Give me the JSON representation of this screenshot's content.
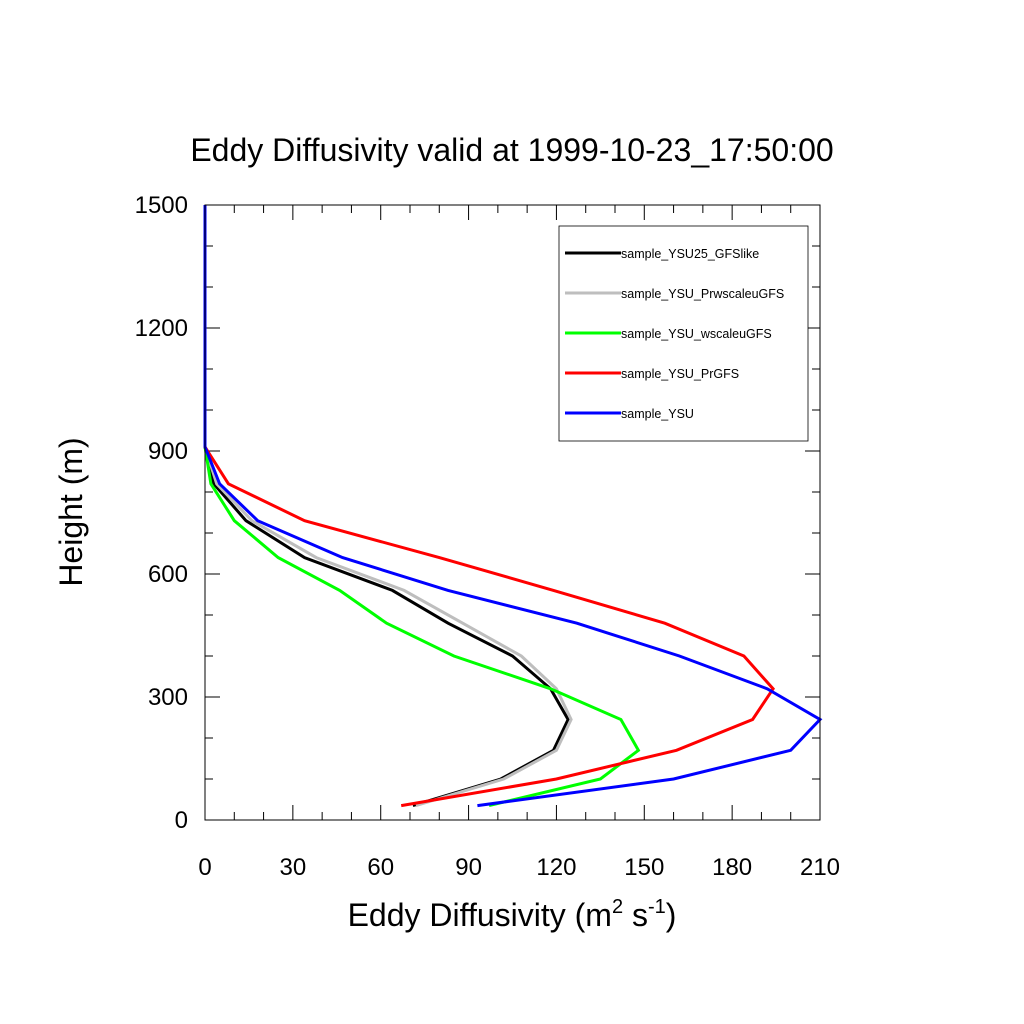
{
  "chart_data": {
    "type": "line",
    "title": "Eddy Diffusivity valid at 1999-10-23_17:50:00",
    "xlabel": "Eddy Diffusivity (m",
    "xlabel_sup1": "2",
    "xlabel_mid": " s",
    "xlabel_sup2": "-1",
    "xlabel_end": ")",
    "ylabel": "Height (m)",
    "xlim": [
      0,
      210
    ],
    "ylim": [
      0,
      1500
    ],
    "xticks": [
      0,
      30,
      60,
      90,
      120,
      150,
      180,
      210
    ],
    "yticks": [
      0,
      300,
      600,
      900,
      1200,
      1500
    ],
    "grid": false,
    "legend_position": "top-right",
    "series": [
      {
        "name": "sample_YSU25_GFSlike",
        "color": "#000000",
        "x": [
          71,
          101,
          119,
          124,
          118,
          105,
          83,
          64,
          34,
          14,
          3,
          0,
          0,
          0,
          0,
          0
        ],
        "y": [
          35,
          100,
          170,
          245,
          320,
          400,
          480,
          560,
          640,
          730,
          820,
          910,
          1000,
          1200,
          1400,
          1500
        ]
      },
      {
        "name": "sample_YSU_PrwscaleuGFS",
        "color": "#bebebe",
        "x": [
          72,
          102,
          120,
          125,
          120,
          108,
          88,
          68,
          38,
          16,
          4,
          0,
          0,
          0,
          0,
          0
        ],
        "y": [
          35,
          100,
          170,
          245,
          320,
          400,
          480,
          560,
          640,
          730,
          820,
          910,
          1000,
          1200,
          1400,
          1500
        ]
      },
      {
        "name": "sample_YSU_wscaleuGFS",
        "color": "#00ff00",
        "x": [
          97,
          135,
          148,
          142,
          118,
          85,
          62,
          46,
          25,
          10,
          2,
          0,
          0,
          0,
          0,
          0
        ],
        "y": [
          35,
          100,
          170,
          245,
          320,
          400,
          480,
          560,
          640,
          730,
          820,
          910,
          1000,
          1200,
          1400,
          1500
        ]
      },
      {
        "name": "sample_YSU_PrGFS",
        "color": "#ff0000",
        "x": [
          67,
          120,
          161,
          187,
          194,
          184,
          157,
          119,
          80,
          34,
          8,
          0,
          0,
          0,
          0,
          0
        ],
        "y": [
          35,
          100,
          170,
          245,
          320,
          400,
          480,
          560,
          640,
          730,
          820,
          910,
          1000,
          1200,
          1400,
          1500
        ]
      },
      {
        "name": "sample_YSU",
        "color": "#0000ff",
        "x": [
          93,
          160,
          200,
          210,
          192,
          162,
          127,
          83,
          47,
          18,
          5,
          0,
          0,
          0,
          0,
          0
        ],
        "y": [
          35,
          100,
          170,
          245,
          320,
          400,
          480,
          560,
          640,
          730,
          820,
          910,
          1000,
          1200,
          1400,
          1500
        ]
      }
    ]
  }
}
